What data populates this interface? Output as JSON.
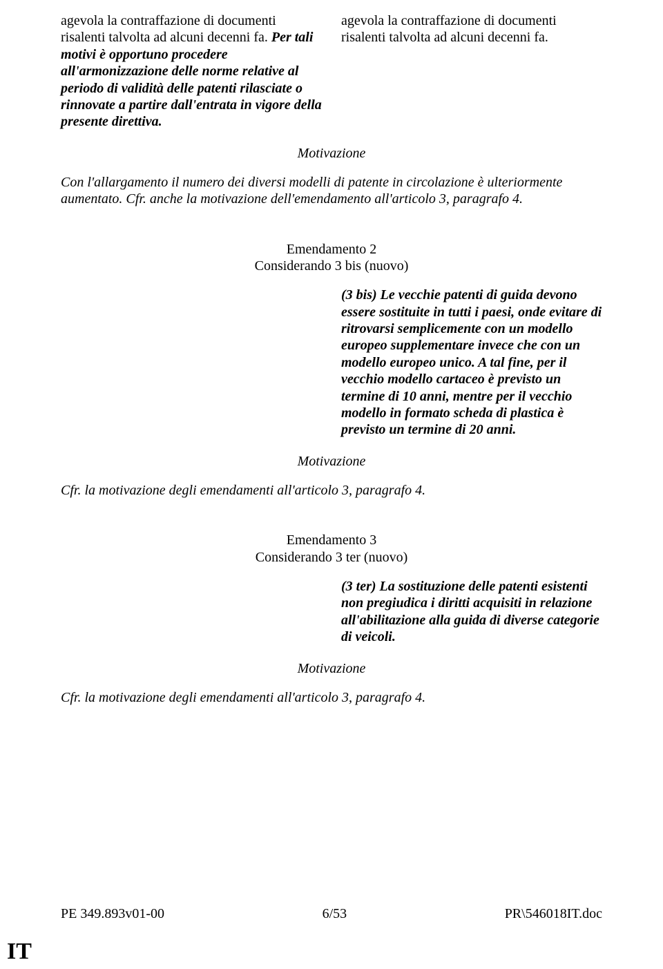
{
  "section1": {
    "left_normal_1": "agevola la contraffazione di documenti risalenti talvolta ad alcuni decenni fa. ",
    "left_bold_ital": "Per tali motivi è opportuno procedere all'armonizzazione delle norme relative al periodo di validità delle patenti rilasciate o rinnovate a partire dall'entrata in vigore della presente direttiva.",
    "right": "agevola la contraffazione di documenti risalenti talvolta ad alcuni decenni fa."
  },
  "motivazione_label": "Motivazione",
  "motivazione1": "Con l'allargamento il numero dei diversi modelli di patente in circolazione è ulteriormente aumentato. Cfr. anche la motivazione dell'emendamento all'articolo 3, paragrafo 4.",
  "amend2": {
    "title_line1": "Emendamento 2",
    "title_line2": "Considerando 3 bis (nuovo)",
    "right_text": "(3 bis) Le vecchie patenti di guida devono essere sostituite in tutti i paesi, onde evitare di ritrovarsi semplicemente con un modello europeo supplementare invece che con un modello europeo unico. A tal fine, per il vecchio modello cartaceo è previsto un termine di 10 anni, mentre per il vecchio modello in formato scheda di plastica è previsto un termine di 20 anni."
  },
  "motivazione2": "Cfr. la motivazione degli emendamenti all'articolo 3, paragrafo 4.",
  "amend3": {
    "title_line1": "Emendamento 3",
    "title_line2": "Considerando 3 ter (nuovo)",
    "right_text": "(3 ter) La sostituzione delle patenti esistenti non pregiudica i diritti acquisiti in relazione all'abilitazione alla guida di diverse categorie di veicoli."
  },
  "motivazione3": "Cfr. la motivazione degli emendamenti all'articolo 3, paragrafo 4.",
  "footer": {
    "left": "PE 349.893v01-00",
    "center": "6/53",
    "right": "PR\\546018IT.doc"
  },
  "lang": "IT"
}
